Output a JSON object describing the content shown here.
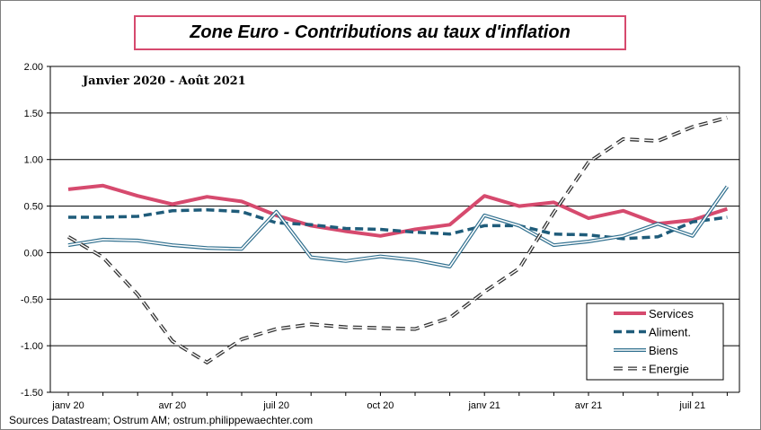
{
  "title": "Zone Euro - Contributions au taux d'inflation",
  "source": "Sources Datastream; Ostrum AM; ostrum.philippewaechter.com",
  "chart_data": {
    "type": "line",
    "subtitle": "Janvier 2020 - Août 2021",
    "x": [
      "2020-01",
      "2020-02",
      "2020-03",
      "2020-04",
      "2020-05",
      "2020-06",
      "2020-07",
      "2020-08",
      "2020-09",
      "2020-10",
      "2020-11",
      "2020-12",
      "2021-01",
      "2021-02",
      "2021-03",
      "2021-04",
      "2021-05",
      "2021-06",
      "2021-07",
      "2021-08"
    ],
    "x_tick_labels": [
      "janv 20",
      "avr 20",
      "juil 20",
      "oct 20",
      "janv 21",
      "avr 21",
      "juil 21"
    ],
    "x_tick_values": [
      "2020-01",
      "2020-04",
      "2020-07",
      "2020-10",
      "2021-01",
      "2021-04",
      "2021-07"
    ],
    "y_ticks": [
      "2.00",
      "1.50",
      "1.00",
      "0.50",
      "0.00",
      "-0.50",
      "-1.00",
      "-1.50"
    ],
    "ylim": [
      -1.5,
      2.0
    ],
    "grid": "horizontal",
    "legend_position": "bottom-right",
    "series": [
      {
        "name": "Services",
        "color": "#d64a6e",
        "style": "solid-thick",
        "values": [
          0.68,
          0.72,
          0.61,
          0.52,
          0.6,
          0.55,
          0.4,
          0.29,
          0.23,
          0.18,
          0.25,
          0.3,
          0.61,
          0.5,
          0.54,
          0.37,
          0.45,
          0.31,
          0.35,
          0.47
        ]
      },
      {
        "name": "Aliment.",
        "color": "#1f5c7a",
        "style": "dashed-thick",
        "values": [
          0.38,
          0.38,
          0.39,
          0.45,
          0.46,
          0.44,
          0.32,
          0.3,
          0.26,
          0.25,
          0.22,
          0.2,
          0.29,
          0.29,
          0.2,
          0.19,
          0.15,
          0.17,
          0.33,
          0.38
        ]
      },
      {
        "name": "Biens",
        "color": "#31708f",
        "style": "double",
        "values": [
          0.08,
          0.14,
          0.13,
          0.08,
          0.05,
          0.04,
          0.44,
          -0.05,
          -0.09,
          -0.04,
          -0.08,
          -0.15,
          0.4,
          0.29,
          0.08,
          0.12,
          0.18,
          0.31,
          0.18,
          0.71
        ]
      },
      {
        "name": "Energie",
        "color": "#333333",
        "style": "dashed-double",
        "values": [
          0.17,
          -0.05,
          -0.45,
          -0.95,
          -1.18,
          -0.93,
          -0.82,
          -0.77,
          -0.8,
          -0.81,
          -0.82,
          -0.7,
          -0.42,
          -0.17,
          0.43,
          0.97,
          1.22,
          1.2,
          1.35,
          1.45
        ]
      }
    ]
  }
}
